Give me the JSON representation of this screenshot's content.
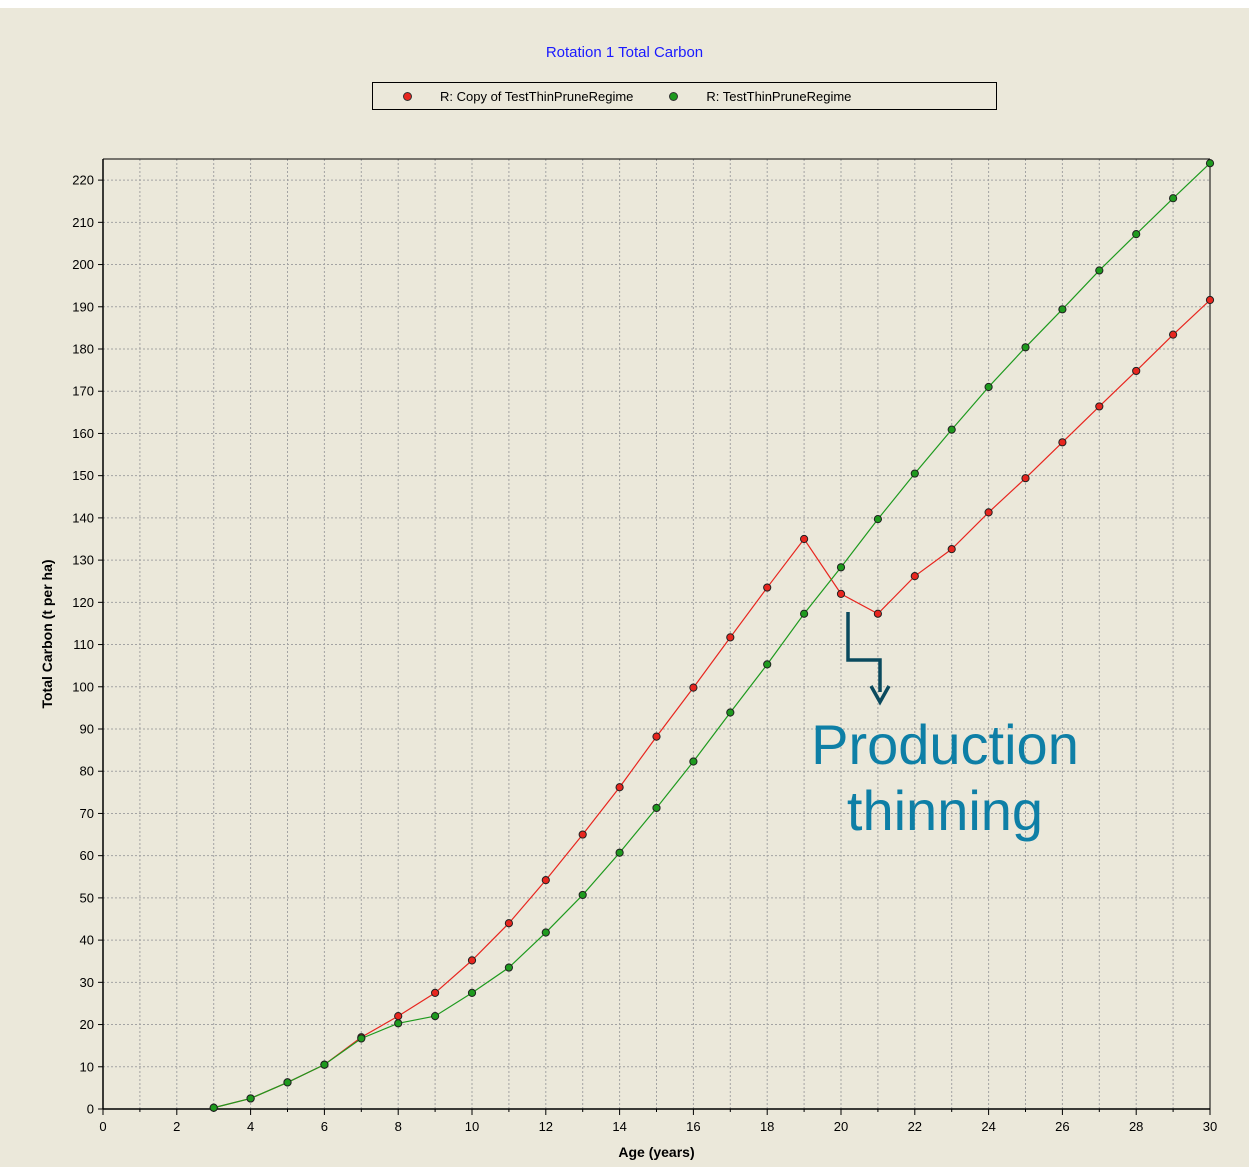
{
  "colors": {
    "background": "#ebe8da",
    "plot_area": "#ebe8da",
    "title": "#1a1aff",
    "series_red": "#e8261f",
    "series_green": "#1e9a1e",
    "annotation": "#0e7fa6",
    "annotation_arrow": "#0b4a5e"
  },
  "annotation": {
    "text": "Production\nthinning",
    "arrow_icon": "bent-arrow-down-icon"
  },
  "chart_data": {
    "type": "line",
    "title": "Rotation 1 Total Carbon",
    "xlabel": "Age (years)",
    "ylabel": "Total Carbon (t per ha)",
    "xlim": [
      0,
      30
    ],
    "ylim": [
      0,
      225
    ],
    "xticks": [
      0,
      2,
      4,
      6,
      8,
      10,
      12,
      14,
      16,
      18,
      20,
      22,
      24,
      26,
      28,
      30
    ],
    "yticks": [
      0,
      10,
      20,
      30,
      40,
      50,
      60,
      70,
      80,
      90,
      100,
      110,
      120,
      130,
      140,
      150,
      160,
      170,
      180,
      190,
      200,
      210,
      220
    ],
    "grid": true,
    "legend_position": "top-center",
    "series": [
      {
        "name": "R: Copy of TestThinPruneRegime",
        "color": "#e8261f",
        "x": [
          3,
          4,
          5,
          6,
          7,
          8,
          9,
          10,
          11,
          12,
          13,
          14,
          15,
          16,
          17,
          18,
          19,
          20,
          21,
          22,
          23,
          24,
          25,
          26,
          27,
          28,
          29,
          30
        ],
        "values": [
          0.3,
          2.5,
          6.3,
          10.5,
          17.0,
          22.0,
          27.5,
          35.2,
          44.0,
          54.2,
          65.0,
          76.2,
          88.2,
          99.8,
          111.7,
          123.5,
          135.0,
          122.0,
          117.3,
          126.2,
          132.6,
          141.3,
          149.4,
          157.9,
          166.4,
          174.8,
          183.4,
          191.6
        ]
      },
      {
        "name": "R: TestThinPruneRegime",
        "color": "#1e9a1e",
        "x": [
          3,
          4,
          5,
          6,
          7,
          8,
          9,
          10,
          11,
          12,
          13,
          14,
          15,
          16,
          17,
          18,
          19,
          20,
          21,
          22,
          23,
          24,
          25,
          26,
          27,
          28,
          29,
          30
        ],
        "values": [
          0.3,
          2.5,
          6.3,
          10.5,
          16.7,
          20.3,
          22.0,
          27.5,
          33.5,
          41.8,
          50.7,
          60.7,
          71.3,
          82.3,
          93.9,
          105.3,
          117.3,
          128.3,
          139.7,
          150.5,
          160.9,
          171.0,
          180.4,
          189.4,
          198.6,
          207.2,
          215.7,
          224.0
        ]
      }
    ]
  }
}
